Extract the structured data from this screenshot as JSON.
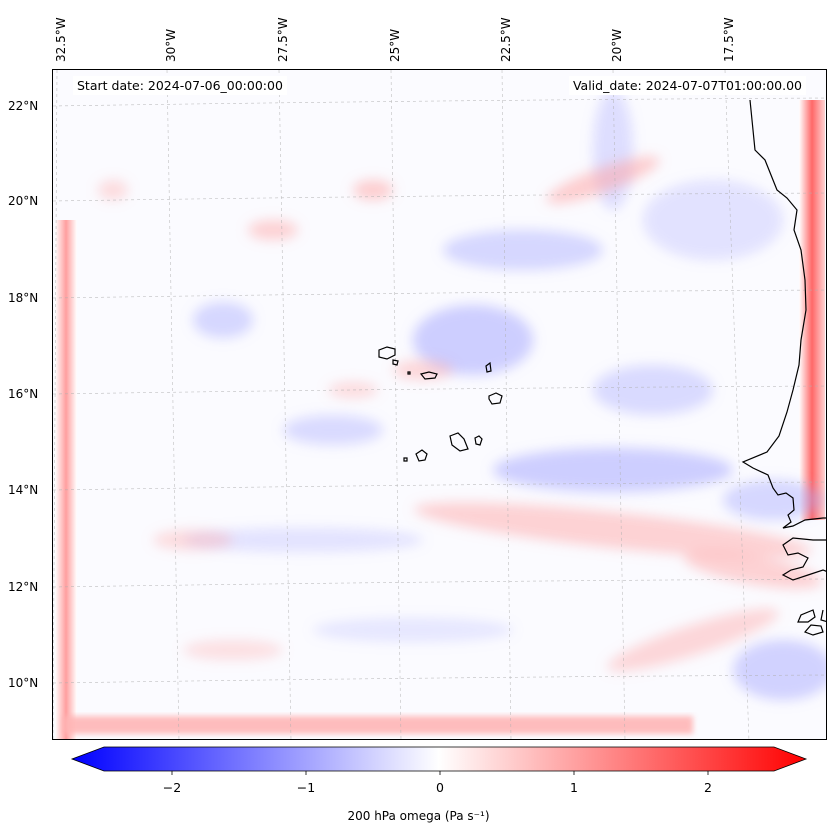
{
  "map": {
    "start_date": "Start date: 2024-07-06_00:00:00",
    "valid_date": "Valid_date: 2024-07-07T01:00:00.00",
    "lon_labels": [
      "32.5°W",
      "30°W",
      "27.5°W",
      "25°W",
      "22.5°W",
      "20°W",
      "17.5°W"
    ],
    "lat_labels": [
      "22°N",
      "20°N",
      "18°N",
      "16°N",
      "14°N",
      "12°N",
      "10°N"
    ]
  },
  "colorbar": {
    "title": "200 hPa omega (Pa s⁻¹)",
    "ticks": [
      "−2",
      "−1",
      "0",
      "1",
      "2"
    ],
    "min_color": "#0000ff",
    "mid_color": "#ffffff",
    "max_color": "#ff0000",
    "range": [
      -2.7,
      2.7
    ]
  }
}
